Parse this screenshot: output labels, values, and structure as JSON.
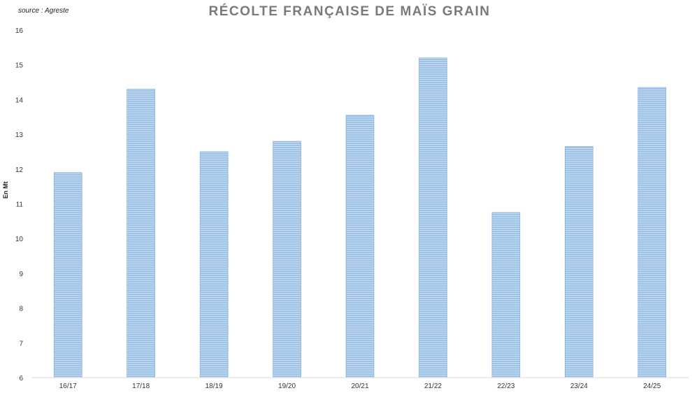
{
  "chart_data": {
    "type": "bar",
    "title": "RÉCOLTE FRANÇAISE DE MAÏS GRAIN",
    "source": "source : Agreste",
    "ylabel": "En Mt",
    "xlabel": "",
    "categories": [
      "16/17",
      "17/18",
      "18/19",
      "19/20",
      "20/21",
      "21/22",
      "22/23",
      "23/24",
      "24/25"
    ],
    "values": [
      11.9,
      14.3,
      12.5,
      12.8,
      13.55,
      15.2,
      10.75,
      12.65,
      14.35
    ],
    "ylim": [
      6,
      16
    ],
    "yticks": [
      6,
      7,
      8,
      9,
      10,
      11,
      12,
      13,
      14,
      15,
      16
    ],
    "grid": false,
    "legend": "none",
    "colors": {
      "bar_fill": "#9ec3e6",
      "bar_stripe": "#ffffff",
      "bar_edge": "#7aa7d6",
      "axis": "#d9d9d9",
      "title": "#7a7a7a"
    }
  }
}
